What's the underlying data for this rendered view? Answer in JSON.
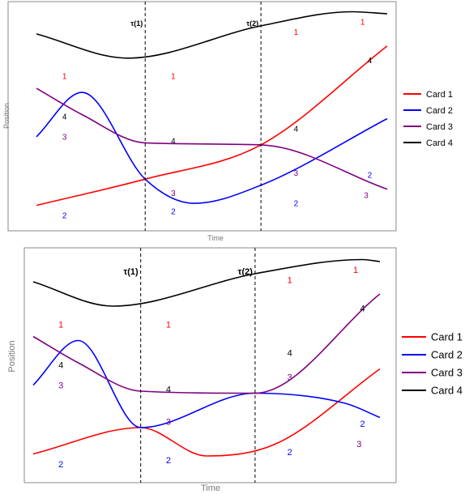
{
  "chart_data": [
    {
      "type": "line",
      "xlabel": "Time",
      "ylabel": "Position",
      "xlim": [
        0,
        1
      ],
      "ylim": [
        0,
        1
      ],
      "grid": false,
      "legend_position": "right",
      "vlines": [
        {
          "x": 0.31,
          "label": "τ(1)"
        },
        {
          "x": 0.64,
          "label": "τ(2)"
        }
      ],
      "series": [
        {
          "name": "Card 1",
          "color": "#ff0000",
          "x": [
            0,
            0.31,
            0.64,
            1
          ],
          "y": [
            0.05,
            0.18,
            0.35,
            0.84
          ]
        },
        {
          "name": "Card 2",
          "color": "#0000ff",
          "x": [
            0,
            0.13,
            0.31,
            0.45,
            0.64,
            1
          ],
          "y": [
            0.39,
            0.61,
            0.18,
            0.06,
            0.15,
            0.48
          ]
        },
        {
          "name": "Card 3",
          "color": "#800080",
          "x": [
            0,
            0.13,
            0.31,
            0.64,
            1
          ],
          "y": [
            0.63,
            0.5,
            0.36,
            0.35,
            0.13
          ]
        },
        {
          "name": "Card 4",
          "color": "#000000",
          "x": [
            0,
            0.26,
            0.64,
            0.9,
            1
          ],
          "y": [
            0.9,
            0.78,
            0.94,
            1.01,
            1.0
          ]
        }
      ],
      "point_labels": [
        {
          "text": "1",
          "x": 0.08,
          "y": 0.69,
          "color": "#ff0000"
        },
        {
          "text": "1",
          "x": 0.39,
          "y": 0.69,
          "color": "#ff0000"
        },
        {
          "text": "1",
          "x": 0.74,
          "y": 0.91,
          "color": "#ff0000"
        },
        {
          "text": "1",
          "x": 0.93,
          "y": 0.96,
          "color": "#ff0000"
        },
        {
          "text": "2",
          "x": 0.08,
          "y": 0.0,
          "color": "#0000ff"
        },
        {
          "text": "2",
          "x": 0.39,
          "y": 0.02,
          "color": "#0000ff"
        },
        {
          "text": "2",
          "x": 0.74,
          "y": 0.06,
          "color": "#0000ff"
        },
        {
          "text": "2",
          "x": 0.95,
          "y": 0.2,
          "color": "#0000ff"
        },
        {
          "text": "3",
          "x": 0.08,
          "y": 0.39,
          "color": "#800080"
        },
        {
          "text": "3",
          "x": 0.39,
          "y": 0.11,
          "color": "#800080"
        },
        {
          "text": "3",
          "x": 0.74,
          "y": 0.21,
          "color": "#800080"
        },
        {
          "text": "3",
          "x": 0.94,
          "y": 0.1,
          "color": "#800080"
        },
        {
          "text": "4",
          "x": 0.08,
          "y": 0.49,
          "color": "#000000"
        },
        {
          "text": "4",
          "x": 0.39,
          "y": 0.37,
          "color": "#000000"
        },
        {
          "text": "4",
          "x": 0.74,
          "y": 0.43,
          "color": "#000000"
        },
        {
          "text": "4",
          "x": 0.95,
          "y": 0.77,
          "color": "#000000"
        }
      ]
    },
    {
      "type": "line",
      "xlabel": "Time",
      "ylabel": "Position",
      "xlim": [
        0,
        1
      ],
      "ylim": [
        0,
        1
      ],
      "grid": false,
      "legend_position": "right",
      "vlines": [
        {
          "x": 0.31,
          "label": "τ(1)"
        },
        {
          "x": 0.64,
          "label": "τ(2)"
        }
      ],
      "series": [
        {
          "name": "Card 1",
          "color": "#ff0000",
          "x": [
            0,
            0.31,
            0.5,
            0.7,
            1
          ],
          "y": [
            0.05,
            0.18,
            0.04,
            0.1,
            0.47
          ]
        },
        {
          "name": "Card 2",
          "color": "#0000ff",
          "x": [
            0,
            0.13,
            0.31,
            0.64,
            0.9,
            1
          ],
          "y": [
            0.39,
            0.61,
            0.18,
            0.35,
            0.3,
            0.23
          ]
        },
        {
          "name": "Card 3",
          "color": "#800080",
          "x": [
            0,
            0.13,
            0.31,
            0.64,
            1
          ],
          "y": [
            0.63,
            0.5,
            0.36,
            0.35,
            0.84
          ]
        },
        {
          "name": "Card 4",
          "color": "#000000",
          "x": [
            0,
            0.23,
            0.64,
            0.95,
            1
          ],
          "y": [
            0.9,
            0.78,
            0.94,
            1.01,
            1.0
          ]
        }
      ],
      "point_labels": [
        {
          "text": "1",
          "x": 0.08,
          "y": 0.69,
          "color": "#ff0000"
        },
        {
          "text": "1",
          "x": 0.39,
          "y": 0.69,
          "color": "#ff0000"
        },
        {
          "text": "1",
          "x": 0.74,
          "y": 0.91,
          "color": "#ff0000"
        },
        {
          "text": "1",
          "x": 0.93,
          "y": 0.96,
          "color": "#ff0000"
        },
        {
          "text": "2",
          "x": 0.08,
          "y": 0.0,
          "color": "#0000ff"
        },
        {
          "text": "2",
          "x": 0.39,
          "y": 0.02,
          "color": "#0000ff"
        },
        {
          "text": "2",
          "x": 0.74,
          "y": 0.06,
          "color": "#0000ff"
        },
        {
          "text": "2",
          "x": 0.95,
          "y": 0.2,
          "color": "#0000ff"
        },
        {
          "text": "3",
          "x": 0.08,
          "y": 0.39,
          "color": "#800080"
        },
        {
          "text": "3",
          "x": 0.39,
          "y": 0.21,
          "color": "#800080"
        },
        {
          "text": "3",
          "x": 0.74,
          "y": 0.43,
          "color": "#800080"
        },
        {
          "text": "3",
          "x": 0.94,
          "y": 0.1,
          "color": "#800080"
        },
        {
          "text": "4",
          "x": 0.08,
          "y": 0.49,
          "color": "#000000"
        },
        {
          "text": "4",
          "x": 0.39,
          "y": 0.37,
          "color": "#000000"
        },
        {
          "text": "4",
          "x": 0.74,
          "y": 0.55,
          "color": "#000000"
        },
        {
          "text": "4",
          "x": 0.95,
          "y": 0.77,
          "color": "#000000"
        }
      ]
    }
  ]
}
